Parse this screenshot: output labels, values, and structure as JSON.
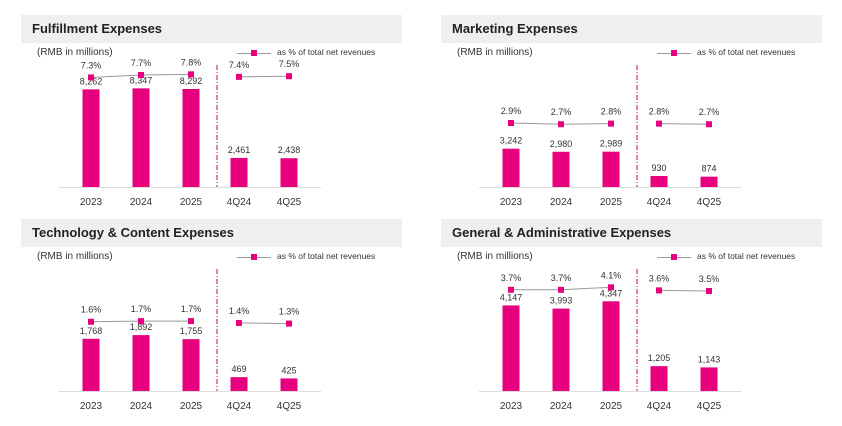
{
  "colors": {
    "accent": "#e6007e",
    "header_bg": "#efefef",
    "pct_line": "#999999",
    "divider": "#c8102e"
  },
  "chart_data": [
    {
      "type": "bar",
      "title": "Fulfillment Expenses",
      "ylabel": "(RMB in millions)",
      "legend": "as % of total net revenues",
      "categories": [
        "2023",
        "2024",
        "2025",
        "4Q24",
        "4Q25"
      ],
      "values": [
        8262,
        8347,
        8292,
        2461,
        2438
      ],
      "value_labels": [
        "8,262",
        "8,347",
        "8,292",
        "2,461",
        "2,438"
      ],
      "pct_values": [
        7.3,
        7.7,
        7.8,
        7.4,
        7.5
      ],
      "pct_labels": [
        "7.3%",
        "7.7%",
        "7.8%",
        "7.4%",
        "7.5%"
      ],
      "ylim": [
        0,
        11000
      ]
    },
    {
      "type": "bar",
      "title": "Marketing Expenses",
      "ylabel": "(RMB in millions)",
      "legend": "as % of total net revenues",
      "categories": [
        "2023",
        "2024",
        "2025",
        "4Q24",
        "4Q25"
      ],
      "values": [
        3242,
        2980,
        2989,
        930,
        874
      ],
      "value_labels": [
        "3,242",
        "2,980",
        "2,989",
        "930",
        "874"
      ],
      "pct_values": [
        2.9,
        2.7,
        2.8,
        2.8,
        2.7
      ],
      "pct_labels": [
        "2.9%",
        "2.7%",
        "2.8%",
        "2.8%",
        "2.7%"
      ],
      "ylim": [
        0,
        11000
      ]
    },
    {
      "type": "bar",
      "title": "Technology & Content Expenses",
      "ylabel": "(RMB in millions)",
      "legend": "as % of total net revenues",
      "categories": [
        "2023",
        "2024",
        "2025",
        "4Q24",
        "4Q25"
      ],
      "values": [
        1768,
        1892,
        1755,
        469,
        425
      ],
      "value_labels": [
        "1,768",
        "1,892",
        "1,755",
        "469",
        "425"
      ],
      "pct_values": [
        1.6,
        1.7,
        1.7,
        1.4,
        1.3
      ],
      "pct_labels": [
        "1.6%",
        "1.7%",
        "1.7%",
        "1.4%",
        "1.3%"
      ],
      "ylim": [
        0,
        4400
      ]
    },
    {
      "type": "bar",
      "title": "General & Administrative Expenses",
      "ylabel": "(RMB in millions)",
      "legend": "as % of total net revenues",
      "categories": [
        "2023",
        "2024",
        "2025",
        "4Q24",
        "4Q25"
      ],
      "values": [
        4147,
        3993,
        4347,
        1205,
        1143
      ],
      "value_labels": [
        "4,147",
        "3,993",
        "4,347",
        "1,205",
        "1,143"
      ],
      "pct_values": [
        3.7,
        3.7,
        4.1,
        3.6,
        3.5
      ],
      "pct_labels": [
        "3.7%",
        "3.7%",
        "4.1%",
        "3.6%",
        "3.5%"
      ],
      "ylim": [
        0,
        6300
      ]
    }
  ]
}
